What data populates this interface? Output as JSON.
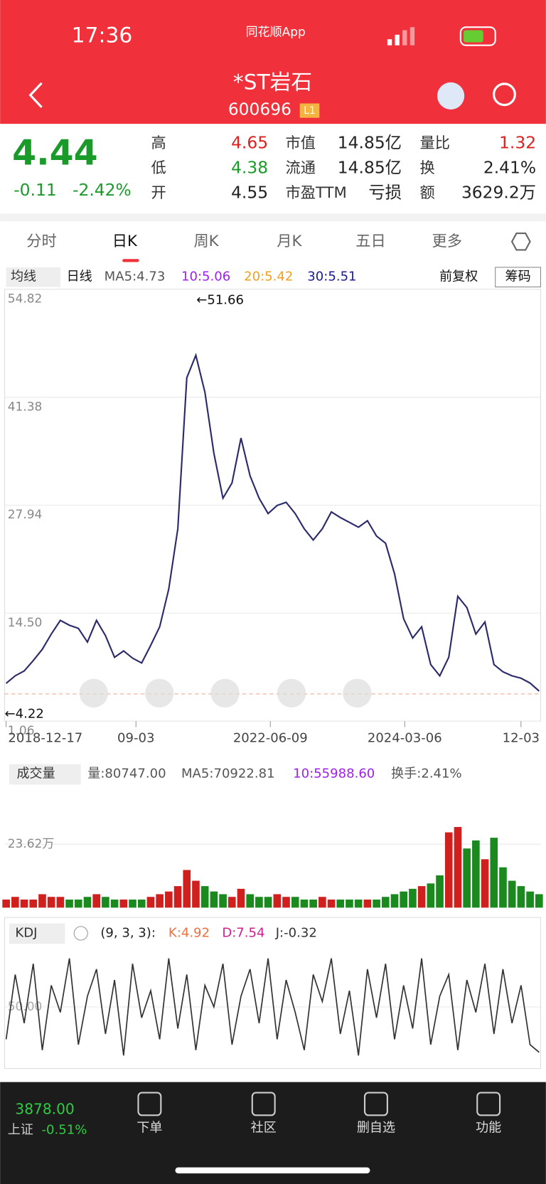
{
  "status": {
    "time": "17:36",
    "app": "同花顺App"
  },
  "header": {
    "title": "*ST岩石",
    "code": "600696",
    "badge": "L1"
  },
  "quote": {
    "price": 4.44,
    "change": "-0.11",
    "pct": "-2.42%",
    "fields": [
      {
        "label": "高",
        "value": "4.65"
      },
      {
        "label": "低",
        "value": "4.38"
      },
      {
        "label": "开",
        "value": "4.55"
      },
      {
        "label": "市值",
        "value": "14.85亿"
      },
      {
        "label": "流通",
        "value": "14.85亿"
      },
      {
        "label": "市盈TTM",
        "value": "亏损"
      },
      {
        "label": "量比",
        "value": "1.32"
      },
      {
        "label": "换",
        "value": "2.41%"
      },
      {
        "label": "额",
        "value": "3629.2万"
      }
    ]
  },
  "tabs": [
    "分时",
    "日K",
    "周K",
    "月K",
    "五日",
    "更多"
  ],
  "ma_bar": {
    "selector": "均线",
    "period": "日线",
    "items": [
      "MA5:4.73",
      "10:5.06",
      "20:5.42",
      "30:5.51"
    ],
    "adjust": "前复权",
    "chips": "筹码"
  },
  "price_chart": {
    "ylim": [
      1.06,
      54.82
    ],
    "yticks": [
      54.82,
      41.38,
      27.94,
      {
        "value": 14.5,
        "label": "14.50"
      },
      1.06
    ],
    "high_label": "←51.66",
    "low_label": "←4.22",
    "dates": [
      "2018-12-17",
      "09-03",
      "2022-06-09",
      "2024-03-06",
      "12-03"
    ],
    "values": [
      5.76,
      6.7,
      7.3,
      8.6,
      10.0,
      11.9,
      13.6,
      13.0,
      12.6,
      10.9,
      13.6,
      11.7,
      9.0,
      9.8,
      8.9,
      8.3,
      10.5,
      12.8,
      17.5,
      25.0,
      43.8,
      46.6,
      42.0,
      34.4,
      28.8,
      30.7,
      36.3,
      31.6,
      28.8,
      26.9,
      27.9,
      28.3,
      26.9,
      25.0,
      23.6,
      25.0,
      27.1,
      26.4,
      25.8,
      25.2,
      26.0,
      24.1,
      23.2,
      19.4,
      13.8,
      11.4,
      12.8,
      8.1,
      6.7,
      9.0,
      16.6,
      15.2,
      11.9,
      13.4,
      8.1,
      7.2,
      6.7,
      6.4,
      5.8,
      4.8
    ]
  },
  "volume_chart": {
    "selector": "成交量",
    "items": [
      "量:80747.00",
      "MA5:70922.81",
      "10:55988.60",
      "换手:2.41%"
    ],
    "ylim": [
      0,
      45.5
    ],
    "yticks": [
      {
        "value": 23.62,
        "label": "23.62万"
      }
    ],
    "values": [
      3,
      4,
      3,
      3,
      5,
      4,
      4,
      3,
      3,
      4,
      5,
      4,
      3,
      3,
      3,
      3,
      4,
      5,
      6,
      8,
      14,
      10,
      8,
      6,
      5,
      4,
      7,
      5,
      4,
      4,
      5,
      4,
      4,
      3,
      3,
      4,
      3,
      3,
      3,
      3,
      3,
      3,
      4,
      5,
      6,
      7,
      8,
      9,
      12,
      28,
      30,
      22,
      25,
      18,
      26,
      15,
      10,
      8,
      6,
      5
    ]
  },
  "kdj_chart": {
    "selector": "KDJ",
    "params": "(9, 3, 3):",
    "items": [
      "K:4.92",
      "D:7.54",
      "J:-0.32"
    ],
    "ylim": [
      0,
      100
    ],
    "yticks": [
      {
        "value": 50,
        "label": "50.00"
      }
    ],
    "values": [
      20,
      80,
      35,
      90,
      10,
      70,
      45,
      95,
      15,
      60,
      85,
      25,
      75,
      5,
      90,
      40,
      65,
      20,
      95,
      30,
      80,
      10,
      70,
      50,
      90,
      15,
      60,
      85,
      35,
      95,
      20,
      75,
      45,
      10,
      80,
      55,
      95,
      25,
      65,
      5,
      85,
      40,
      90,
      20,
      70,
      30,
      95,
      15,
      60,
      80,
      10,
      75,
      45,
      90,
      25,
      85,
      35,
      70,
      15,
      8
    ]
  },
  "bottom_nav": {
    "index_value": "3878.00",
    "index_name": "上证",
    "index_pct": "-0.51%",
    "items": [
      "下单",
      "社区",
      "删自选",
      "功能"
    ]
  }
}
